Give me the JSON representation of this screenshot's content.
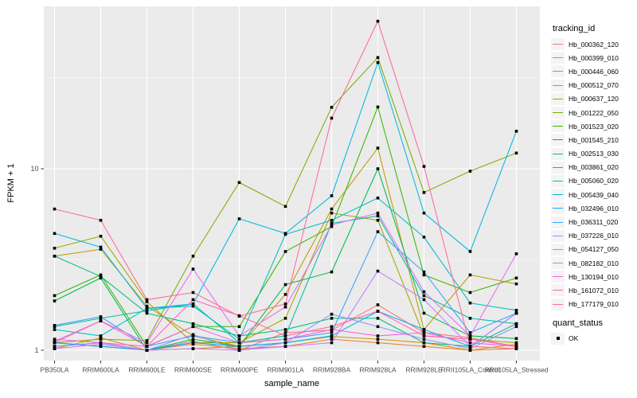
{
  "figure": {
    "panel_bg": "#EBEBEB",
    "grid_color": "#FFFFFF",
    "tick_text_color": "#4D4D4D",
    "point_color": "#000000",
    "y_axis": {
      "title": "FPKM + 1"
    },
    "x_axis": {
      "title": "sample_name"
    },
    "legend": {
      "title": "tracking_id"
    },
    "quant_legend": {
      "title": "quant_status",
      "ok_label": "OK"
    }
  },
  "chart_data": {
    "type": "line",
    "title": "",
    "xlabel": "sample_name",
    "ylabel": "FPKM + 1",
    "y_scale": "log10",
    "ylim": [
      1,
      78
    ],
    "y_ticks": [
      1,
      10
    ],
    "grid": "on",
    "legend_position": "right",
    "legend_title": "tracking_id",
    "point_marker": "black-square (quant_status = OK)",
    "categories": [
      "PB350LA",
      "RRIM600LA",
      "RRIM600LE",
      "RRIM600SE",
      "RRIM600PE",
      "RRIM901LA",
      "RRIM928BA",
      "RRIM928LA",
      "RRIM928LE",
      "RRII105LA_Control",
      "RRII105LA_Stressed"
    ],
    "series": [
      {
        "name": "Hb_000362_120",
        "color": "#F8766D",
        "values": [
          1.05,
          1.1,
          1.0,
          1.12,
          1.0,
          1.25,
          1.29,
          1.78,
          1.25,
          1.17,
          1.05
        ]
      },
      {
        "name": "Hb_000399_010",
        "color": "#EB8335",
        "values": [
          1.1,
          1.05,
          1.0,
          1.08,
          1.02,
          1.05,
          1.15,
          1.1,
          1.05,
          1.0,
          1.08
        ]
      },
      {
        "name": "Hb_000446_060",
        "color": "#D89000",
        "values": [
          1.02,
          1.17,
          1.0,
          1.02,
          1.05,
          1.1,
          1.19,
          1.15,
          1.1,
          1.0,
          1.02
        ]
      },
      {
        "name": "Hb_000512_070",
        "color": "#C09B00",
        "values": [
          3.3,
          3.6,
          1.75,
          1.2,
          1.05,
          2.03,
          6.0,
          13.0,
          1.3,
          2.6,
          2.32
        ]
      },
      {
        "name": "Hb_000637_120",
        "color": "#A3A500",
        "values": [
          3.65,
          4.25,
          1.85,
          1.1,
          1.1,
          1.5,
          5.7,
          5.2,
          1.2,
          1.15,
          1.1
        ]
      },
      {
        "name": "Hb_001222_050",
        "color": "#7CAE00",
        "values": [
          1.1,
          1.15,
          1.13,
          3.3,
          8.4,
          6.2,
          21.8,
          41.0,
          7.4,
          9.7,
          12.2
        ]
      },
      {
        "name": "Hb_001523_020",
        "color": "#39B600",
        "values": [
          2.0,
          2.6,
          1.05,
          1.35,
          1.35,
          3.5,
          4.8,
          21.9,
          2.6,
          2.08,
          2.5
        ]
      },
      {
        "name": "Hb_001545_210",
        "color": "#00BB4E",
        "values": [
          1.87,
          2.5,
          1.0,
          1.15,
          1.05,
          2.3,
          2.7,
          10.0,
          1.6,
          1.2,
          1.16
        ]
      },
      {
        "name": "Hb_002513_030",
        "color": "#00BF7D",
        "values": [
          3.3,
          2.55,
          1.6,
          1.4,
          1.2,
          1.3,
          1.5,
          1.5,
          1.1,
          1.05,
          1.4
        ]
      },
      {
        "name": "Hb_003861_020",
        "color": "#00C1A3",
        "values": [
          1.35,
          1.5,
          1.65,
          1.8,
          1.1,
          1.2,
          5.0,
          5.5,
          2.0,
          1.5,
          1.4
        ]
      },
      {
        "name": "Hb_005060_020",
        "color": "#00BFC4",
        "values": [
          1.3,
          1.2,
          1.7,
          1.75,
          1.15,
          4.35,
          5.2,
          6.9,
          4.2,
          1.82,
          1.66
        ]
      },
      {
        "name": "Hb_005439_040",
        "color": "#00BAE0",
        "values": [
          4.4,
          3.7,
          1.7,
          1.8,
          5.3,
          4.4,
          7.1,
          38.5,
          5.7,
          3.5,
          16.1
        ]
      },
      {
        "name": "Hb_032496_010",
        "color": "#00B0F6",
        "values": [
          1.1,
          1.05,
          1.0,
          1.1,
          1.05,
          1.1,
          1.2,
          1.64,
          1.3,
          1.05,
          1.6
        ]
      },
      {
        "name": "Hb_036311_020",
        "color": "#35A2FF",
        "values": [
          1.37,
          1.53,
          1.05,
          1.2,
          1.1,
          1.15,
          1.25,
          4.5,
          2.7,
          1.25,
          1.6
        ]
      },
      {
        "name": "Hb_037226_010",
        "color": "#9590FF",
        "values": [
          1.05,
          1.1,
          1.0,
          1.22,
          1.0,
          1.1,
          1.58,
          1.35,
          1.15,
          1.02,
          1.35
        ]
      },
      {
        "name": "Hb_054127_050",
        "color": "#C77CFF",
        "values": [
          1.02,
          1.08,
          1.0,
          1.02,
          1.0,
          1.05,
          1.1,
          2.73,
          1.9,
          1.05,
          1.6
        ]
      },
      {
        "name": "Hb_082182_010",
        "color": "#E76BF3",
        "values": [
          1.1,
          1.45,
          1.1,
          2.8,
          1.2,
          1.73,
          4.9,
          5.7,
          2.1,
          1.2,
          3.4
        ]
      },
      {
        "name": "Hb_130194_010",
        "color": "#FA62DB",
        "values": [
          1.15,
          1.1,
          1.05,
          1.35,
          1.1,
          1.15,
          1.3,
          1.2,
          1.25,
          1.1,
          1.05
        ]
      },
      {
        "name": "Hb_161072_010",
        "color": "#FF62BC",
        "values": [
          1.12,
          1.45,
          1.05,
          1.9,
          1.55,
          1.2,
          1.35,
          1.64,
          1.2,
          1.15,
          1.05
        ]
      },
      {
        "name": "Hb_177179_010",
        "color": "#FF6A98",
        "values": [
          6.0,
          5.2,
          1.9,
          2.08,
          1.54,
          1.8,
          19.0,
          65.0,
          10.3,
          1.05,
          1.02
        ]
      }
    ]
  }
}
